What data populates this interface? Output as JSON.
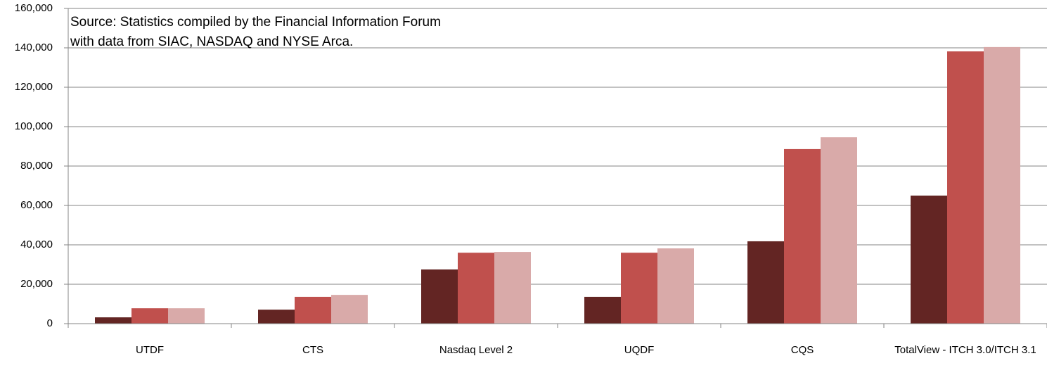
{
  "chart_data": {
    "type": "bar",
    "annotation": [
      "Source: Statistics compiled by the Financial Information Forum",
      "with data from SIAC, NASDAQ and NYSE Arca."
    ],
    "categories": [
      "UTDF",
      "CTS",
      "Nasdaq Level 2",
      "UQDF",
      "CQS",
      "TotalView - ITCH 3.0/ITCH 3.1"
    ],
    "series": [
      {
        "color": "#632523",
        "values": [
          3200,
          7100,
          27500,
          13600,
          41800,
          65000
        ]
      },
      {
        "color": "#c0504d",
        "values": [
          7800,
          13600,
          36000,
          36000,
          88600,
          138200
        ]
      },
      {
        "color": "#d9aaa9",
        "values": [
          7800,
          14600,
          36400,
          38200,
          94600,
          140400
        ]
      }
    ],
    "ylim": [
      0,
      160000
    ],
    "yticks": [
      0,
      {
        "value": 20000,
        "label": "20,000"
      },
      {
        "value": 40000,
        "label": "40,000"
      },
      {
        "value": 60000,
        "label": "60,000"
      },
      {
        "value": 80000,
        "label": "80,000"
      },
      {
        "value": 100000,
        "label": "100,000"
      },
      {
        "value": 120000,
        "label": "120,000"
      },
      {
        "value": 140000,
        "label": "140,000"
      },
      {
        "value": 160000,
        "label": "160,000"
      }
    ],
    "grid": true
  }
}
